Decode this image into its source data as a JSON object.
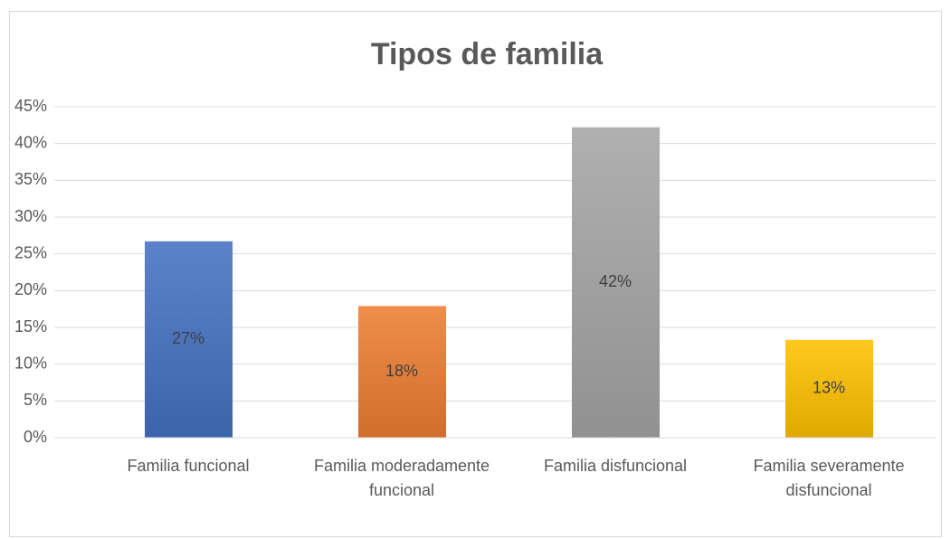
{
  "chart_data": {
    "type": "bar",
    "title": "Tipos de familia",
    "categories": [
      "Familia funcional",
      "Familia moderadamente funcional",
      "Familia disfuncional",
      "Familia severamente disfuncional"
    ],
    "values": [
      26.7,
      17.9,
      42.2,
      13.3
    ],
    "value_labels": [
      "27%",
      "18%",
      "42%",
      "13%"
    ],
    "colors": [
      "#4472c4",
      "#ed7d31",
      "#a5a5a5",
      "#ffc000"
    ],
    "ylim": [
      0,
      45
    ],
    "yticks": [
      {
        "value": 0,
        "label": "0%"
      },
      {
        "value": 5,
        "label": "5%"
      },
      {
        "value": 10,
        "label": "10%"
      },
      {
        "value": 15,
        "label": "15%"
      },
      {
        "value": 20,
        "label": "20%"
      },
      {
        "value": 25,
        "label": "25%"
      },
      {
        "value": 30,
        "label": "30%"
      },
      {
        "value": 35,
        "label": "35%"
      },
      {
        "value": 40,
        "label": "40%"
      },
      {
        "value": 45,
        "label": "45%"
      }
    ],
    "grid": true
  }
}
